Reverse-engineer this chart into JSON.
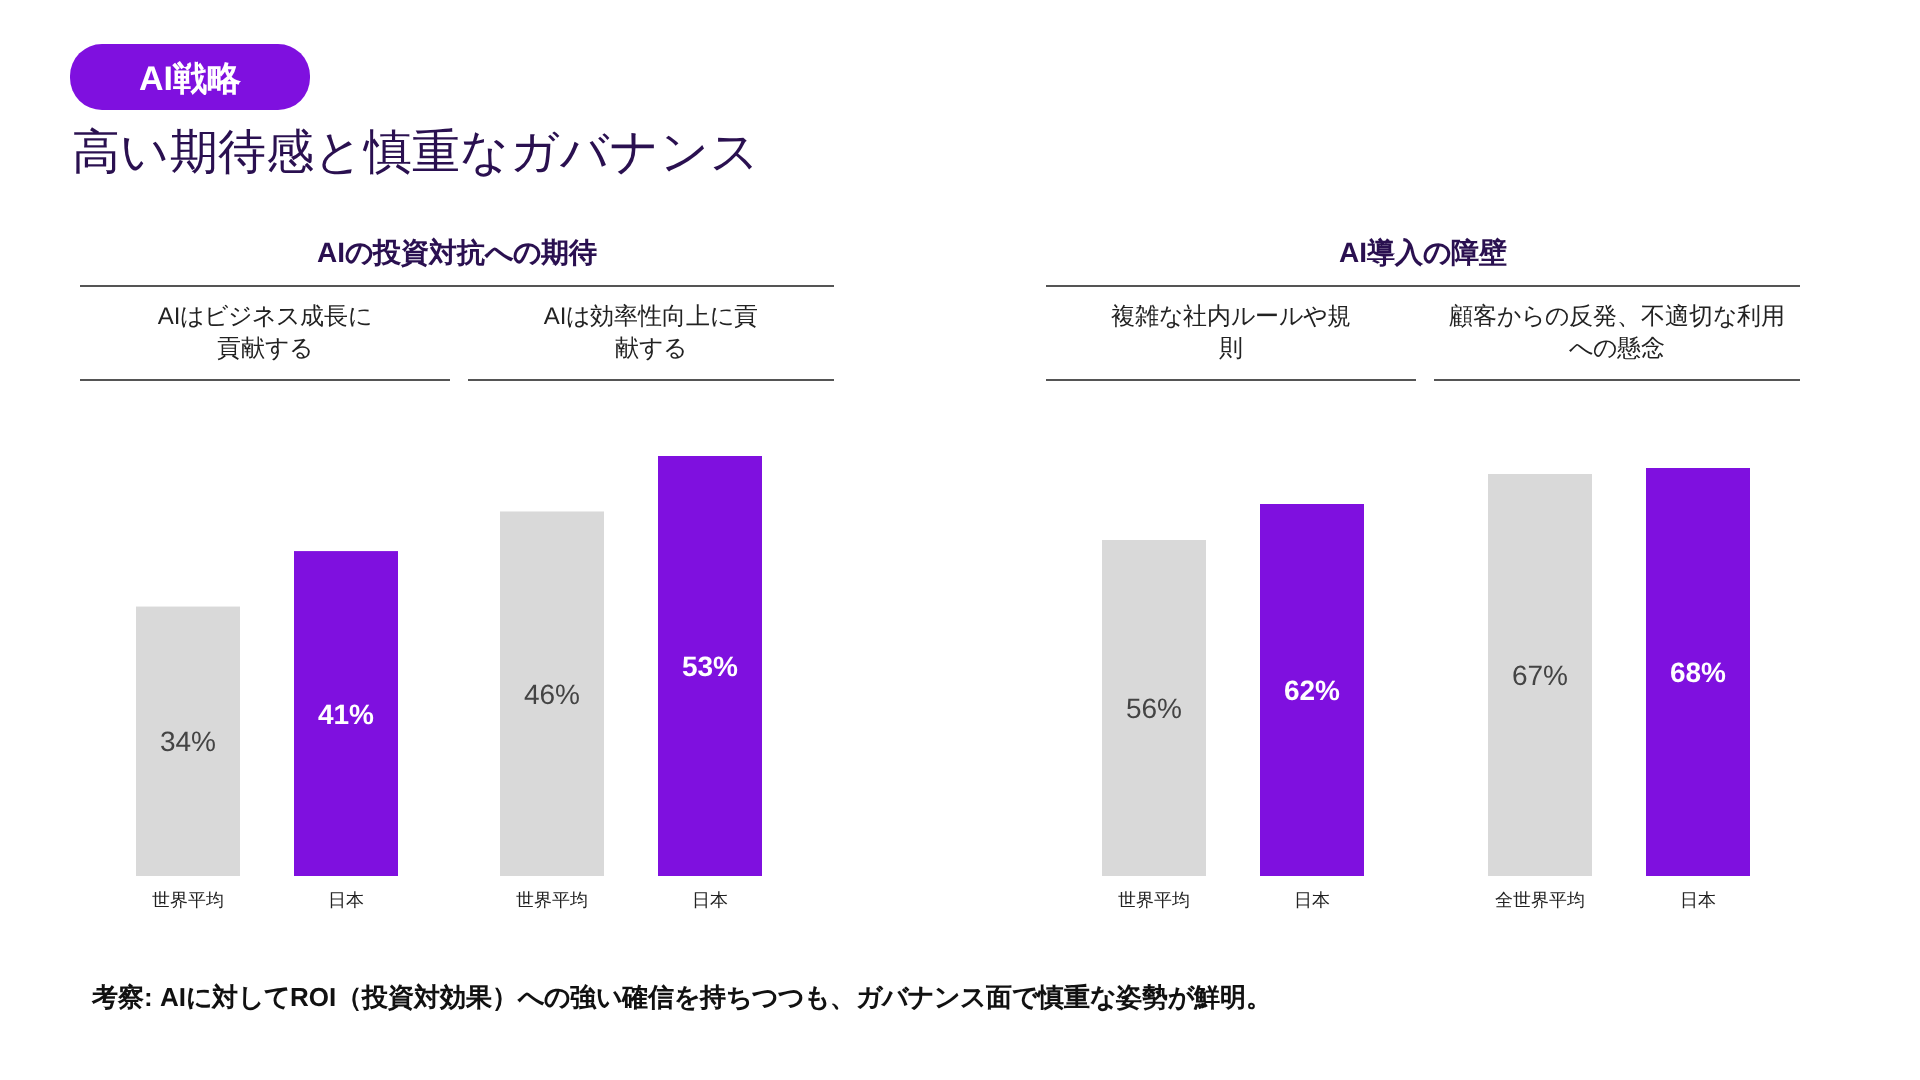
{
  "chart_data": [
    {
      "type": "other",
      "subtitle": "AI戦略",
      "title": "高い期待感と慎重なガバナンス",
      "annotations": [
        "考察: AIに対してROI（投資対効果）への強い確信を持ちつつも、ガバナンス面で慎重な姿勢が鮮明。"
      ]
    },
    {
      "type": "bar",
      "title": "AIの投資対抗への期待",
      "subtitle": "AIはビジネス成長に貢献する",
      "categories": [
        "世界平均",
        "日本"
      ],
      "values": [
        34,
        41
      ],
      "value_labels": [
        "34%",
        "41%"
      ],
      "colors": [
        "#d9d9d9",
        "#7f10df"
      ]
    },
    {
      "type": "bar",
      "subtitle": "AIは効率性向上に貢献する",
      "categories": [
        "世界平均",
        "日本"
      ],
      "values": [
        46,
        53
      ],
      "value_labels": [
        "46%",
        "53%"
      ],
      "colors": [
        "#d9d9d9",
        "#7f10df"
      ]
    },
    {
      "type": "bar",
      "title": "AI導入の障壁",
      "subtitle": "複雑な社内ルールや規則",
      "categories": [
        "世界平均",
        "日本"
      ],
      "values": [
        56,
        62
      ],
      "value_labels": [
        "56%",
        "62%"
      ],
      "colors": [
        "#d9d9d9",
        "#7f10df"
      ]
    },
    {
      "type": "bar",
      "subtitle": "顧客からの反発、不適切な利用への懸念",
      "categories": [
        "全世界平均",
        "日本"
      ],
      "values": [
        67,
        68
      ],
      "value_labels": [
        "67%",
        "68%"
      ],
      "colors": [
        "#d9d9d9",
        "#7f10df"
      ]
    }
  ]
}
